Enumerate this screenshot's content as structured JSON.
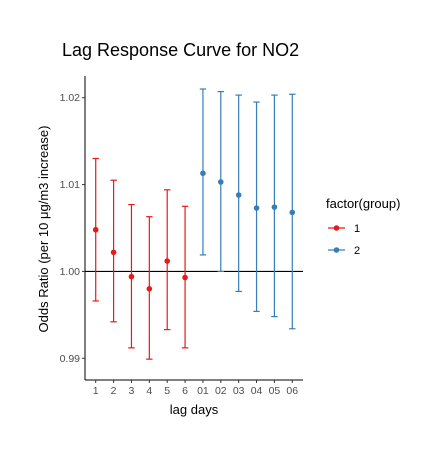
{
  "chart_data": {
    "type": "scatter",
    "title": "Lag Response Curve for NO2",
    "xlabel": "lag days",
    "ylabel": "Odds Ratio (per 10 μg/m3 increase)",
    "categories": [
      "1",
      "2",
      "3",
      "4",
      "5",
      "6",
      "01",
      "02",
      "03",
      "04",
      "05",
      "06"
    ],
    "y_ticks": [
      0.99,
      1.0,
      1.01,
      1.02
    ],
    "y_tick_labels": [
      "0.99",
      "1.00",
      "1.01",
      "1.02"
    ],
    "ylim": [
      0.9875,
      1.0225
    ],
    "reference_line": 1.0,
    "grid": false,
    "legend": {
      "title": "factor(group)",
      "position": "right"
    },
    "series": [
      {
        "name": "1",
        "color": "#e41a1c",
        "x": [
          "1",
          "2",
          "3",
          "4",
          "5",
          "6"
        ],
        "values": [
          1.0048,
          1.0022,
          0.9994,
          0.998,
          1.0012,
          0.9993
        ],
        "lower": [
          0.9966,
          0.9942,
          0.9912,
          0.9899,
          0.9933,
          0.9912
        ],
        "upper": [
          1.013,
          1.0105,
          1.0077,
          1.0063,
          1.0094,
          1.0075
        ]
      },
      {
        "name": "2",
        "color": "#377eb8",
        "x": [
          "01",
          "02",
          "03",
          "04",
          "05",
          "06"
        ],
        "values": [
          1.0113,
          1.0103,
          1.0088,
          1.0073,
          1.0074,
          1.0068
        ],
        "lower": [
          1.0019,
          1.0,
          0.9977,
          0.9954,
          0.9948,
          0.9934
        ],
        "upper": [
          1.021,
          1.0207,
          1.0203,
          1.0195,
          1.0203,
          1.0204
        ]
      }
    ]
  }
}
